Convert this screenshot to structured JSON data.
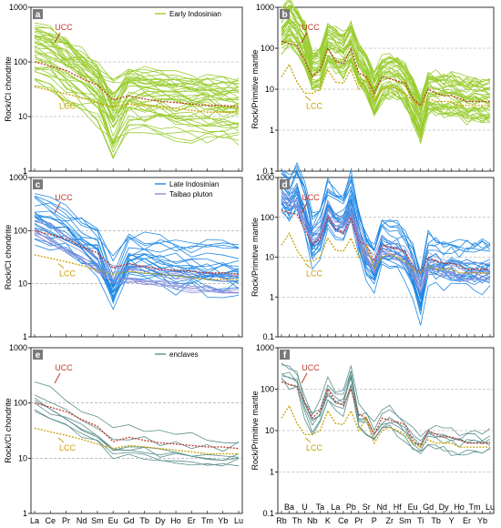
{
  "colors": {
    "early": "#9acd32",
    "late": "#1e88e5",
    "taibao": "#8a8fd8",
    "enclaves": "#5a8f8c",
    "ucc": "#c0392b",
    "lcc": "#c8a000",
    "grid": "#9a9a9a",
    "panel_label_bg": "#7a7a7a"
  },
  "chart_data": [
    {
      "id": "a",
      "type": "line",
      "panel_label": "a",
      "ylabel": "Rock/CI chondrite",
      "yscale": "log",
      "ylim": [
        1,
        1000
      ],
      "yticks": [
        "1",
        "10",
        "100",
        "1000"
      ],
      "categories": [
        "La",
        "Ce",
        "Pr",
        "Nd",
        "Sm",
        "Eu",
        "Gd",
        "Tb",
        "Dy",
        "Ho",
        "Er",
        "Tm",
        "Yb",
        "Lu"
      ],
      "show_xlabels": false,
      "legend": [
        {
          "label": "Early Indosinian",
          "color": "early"
        }
      ],
      "annotations": [
        {
          "text": "UCC",
          "color": "ucc"
        },
        {
          "text": "LCC",
          "color": "lcc"
        }
      ],
      "groups": [
        {
          "name": "Early Indosinian",
          "color": "early",
          "count": 40,
          "seed": 11,
          "base": [
            150,
            110,
            70,
            45,
            28,
            15,
            22,
            20,
            18,
            16,
            15,
            14,
            13,
            13
          ],
          "spread": 0.55,
          "eu_var": 0.6
        },
        {
          "name": "UCC",
          "color": "ucc",
          "count": 1,
          "seed": 2,
          "dashed": true,
          "base": [
            100,
            84,
            70,
            50,
            38,
            20,
            24,
            21,
            19,
            18,
            17,
            16,
            16,
            15
          ],
          "spread": 0
        },
        {
          "name": "LCC",
          "color": "lcc",
          "count": 1,
          "seed": 3,
          "dashed": true,
          "base": [
            35,
            30,
            26,
            22,
            18,
            15,
            17,
            16,
            15,
            14,
            13,
            12,
            12,
            12
          ],
          "spread": 0
        }
      ]
    },
    {
      "id": "b",
      "type": "line",
      "panel_label": "b",
      "ylabel": "Rock/Primitive mantle",
      "yscale": "log",
      "ylim": [
        0.1,
        1000
      ],
      "yticks": [
        "0.1",
        "1",
        "10",
        "100",
        "1000"
      ],
      "categories": [
        "Rb",
        "Ba",
        "Th",
        "U",
        "Nb",
        "Ta",
        "K",
        "La",
        "Ce",
        "Pb",
        "Pr",
        "Sr",
        "P",
        "Nd",
        "Zr",
        "Hf",
        "Sm",
        "Eu",
        "Ti",
        "Gd",
        "Tb",
        "Dy",
        "Y",
        "Ho",
        "Er",
        "Tm",
        "Yb",
        "Lu"
      ],
      "show_xlabels": false,
      "annotations": [
        {
          "text": "UCC",
          "color": "ucc"
        },
        {
          "text": "LCC",
          "color": "lcc"
        }
      ],
      "groups": [
        {
          "name": "Early Indosinian",
          "color": "early",
          "count": 40,
          "seed": 21,
          "base": [
            300,
            500,
            300,
            150,
            30,
            35,
            150,
            100,
            80,
            150,
            45,
            25,
            8,
            20,
            25,
            22,
            14,
            6,
            2,
            10,
            9,
            8,
            8,
            7,
            6,
            6,
            6,
            6
          ],
          "spread": 0.55
        },
        {
          "name": "UCC",
          "color": "ucc",
          "count": 1,
          "seed": 4,
          "dashed": true,
          "base": [
            150,
            130,
            120,
            50,
            20,
            30,
            100,
            50,
            40,
            100,
            25,
            20,
            8,
            20,
            18,
            16,
            14,
            6,
            4,
            10,
            8,
            7,
            7,
            6,
            5,
            5,
            5,
            5
          ],
          "spread": 0
        },
        {
          "name": "LCC",
          "color": "lcc",
          "count": 1,
          "seed": 5,
          "dashed": true,
          "base": [
            20,
            40,
            15,
            8,
            8,
            10,
            30,
            15,
            14,
            30,
            10,
            20,
            5,
            10,
            12,
            10,
            8,
            5,
            4,
            6,
            5,
            5,
            5,
            4,
            4,
            4,
            4,
            4
          ],
          "spread": 0
        }
      ]
    },
    {
      "id": "c",
      "type": "line",
      "panel_label": "c",
      "ylabel": "Rock/CI chondrite",
      "yscale": "log",
      "ylim": [
        1,
        1000
      ],
      "yticks": [
        "1",
        "10",
        "100",
        "1000"
      ],
      "categories": [
        "La",
        "Ce",
        "Pr",
        "Nd",
        "Sm",
        "Eu",
        "Gd",
        "Tb",
        "Dy",
        "Ho",
        "Er",
        "Tm",
        "Yb",
        "Lu"
      ],
      "show_xlabels": false,
      "legend": [
        {
          "label": "Late Indosinian",
          "color": "late"
        },
        {
          "label": "Taibao pluton",
          "color": "taibao"
        }
      ],
      "annotations": [
        {
          "text": "UCC",
          "color": "ucc"
        },
        {
          "text": "LCC",
          "color": "lcc"
        }
      ],
      "groups": [
        {
          "name": "Late Indosinian",
          "color": "late",
          "count": 22,
          "seed": 31,
          "base": [
            170,
            130,
            90,
            60,
            38,
            12,
            28,
            25,
            22,
            20,
            19,
            18,
            17,
            17
          ],
          "spread": 0.55,
          "eu_var": 0.5
        },
        {
          "name": "Taibao pluton",
          "color": "taibao",
          "count": 8,
          "seed": 37,
          "base": [
            120,
            90,
            60,
            40,
            24,
            16,
            16,
            15,
            13,
            12,
            11,
            11,
            10,
            10
          ],
          "spread": 0.2
        },
        {
          "name": "UCC",
          "color": "ucc",
          "count": 1,
          "seed": 6,
          "dashed": true,
          "base": [
            100,
            84,
            70,
            50,
            38,
            20,
            24,
            21,
            19,
            18,
            17,
            16,
            16,
            15
          ],
          "spread": 0
        },
        {
          "name": "LCC",
          "color": "lcc",
          "count": 1,
          "seed": 7,
          "dashed": true,
          "base": [
            35,
            30,
            26,
            22,
            18,
            15,
            17,
            16,
            15,
            14,
            13,
            12,
            12,
            12
          ],
          "spread": 0
        }
      ]
    },
    {
      "id": "d",
      "type": "line",
      "panel_label": "d",
      "ylabel": "Rock/Primitive mantle",
      "yscale": "log",
      "ylim": [
        0.1,
        1000
      ],
      "yticks": [
        "0.1",
        "1",
        "10",
        "100",
        "1000"
      ],
      "categories": [
        "Rb",
        "Ba",
        "Th",
        "U",
        "Nb",
        "Ta",
        "K",
        "La",
        "Ce",
        "Pb",
        "Pr",
        "Sr",
        "P",
        "Nd",
        "Zr",
        "Hf",
        "Sm",
        "Eu",
        "Ti",
        "Gd",
        "Tb",
        "Dy",
        "Y",
        "Ho",
        "Er",
        "Tm",
        "Yb",
        "Lu"
      ],
      "show_xlabels": false,
      "annotations": [
        {
          "text": "UCC",
          "color": "ucc"
        },
        {
          "text": "LCC",
          "color": "lcc"
        }
      ],
      "groups": [
        {
          "name": "Late Indosinian",
          "color": "late",
          "count": 22,
          "seed": 41,
          "base": [
            400,
            250,
            500,
            150,
            25,
            40,
            200,
            110,
            90,
            300,
            40,
            10,
            5,
            20,
            20,
            18,
            12,
            4,
            1,
            9,
            8,
            7,
            7,
            6,
            6,
            6,
            6,
            6
          ],
          "spread": 0.6
        },
        {
          "name": "Taibao pluton",
          "color": "taibao",
          "count": 8,
          "seed": 47,
          "base": [
            350,
            300,
            250,
            80,
            30,
            35,
            150,
            70,
            60,
            120,
            30,
            12,
            6,
            18,
            15,
            14,
            10,
            5,
            2,
            7,
            6,
            5,
            5,
            4,
            4,
            4,
            4,
            4
          ],
          "spread": 0.25
        },
        {
          "name": "UCC",
          "color": "ucc",
          "count": 1,
          "seed": 8,
          "dashed": true,
          "base": [
            150,
            130,
            120,
            50,
            20,
            30,
            100,
            50,
            40,
            100,
            25,
            20,
            8,
            20,
            18,
            16,
            14,
            6,
            4,
            10,
            8,
            7,
            7,
            6,
            5,
            5,
            5,
            5
          ],
          "spread": 0
        },
        {
          "name": "LCC",
          "color": "lcc",
          "count": 1,
          "seed": 9,
          "dashed": true,
          "base": [
            20,
            40,
            15,
            8,
            8,
            10,
            30,
            15,
            14,
            30,
            10,
            20,
            5,
            10,
            12,
            10,
            8,
            5,
            4,
            6,
            5,
            5,
            5,
            4,
            4,
            4,
            4,
            4
          ],
          "spread": 0
        }
      ]
    },
    {
      "id": "e",
      "type": "line",
      "panel_label": "e",
      "ylabel": "Rock/CI chondrite",
      "yscale": "log",
      "ylim": [
        1,
        1000
      ],
      "yticks": [
        "1",
        "10",
        "100",
        "1000"
      ],
      "categories": [
        "La",
        "Ce",
        "Pr",
        "Nd",
        "Sm",
        "Eu",
        "Gd",
        "Tb",
        "Dy",
        "Ho",
        "Er",
        "Tm",
        "Yb",
        "Lu"
      ],
      "show_xlabels": true,
      "legend": [
        {
          "label": "enclaves",
          "color": "enclaves"
        }
      ],
      "annotations": [
        {
          "text": "UCC",
          "color": "ucc"
        },
        {
          "text": "LCC",
          "color": "lcc"
        }
      ],
      "groups": [
        {
          "name": "enclaves",
          "color": "enclaves",
          "count": 7,
          "seed": 51,
          "base": [
            140,
            105,
            75,
            50,
            32,
            22,
            22,
            19,
            17,
            16,
            15,
            15,
            14,
            14
          ],
          "spread": 0.35
        },
        {
          "name": "UCC",
          "color": "ucc",
          "count": 1,
          "seed": 10,
          "dashed": true,
          "base": [
            100,
            84,
            70,
            50,
            38,
            20,
            24,
            21,
            19,
            18,
            17,
            16,
            16,
            15
          ],
          "spread": 0
        },
        {
          "name": "LCC",
          "color": "lcc",
          "count": 1,
          "seed": 12,
          "dashed": true,
          "base": [
            35,
            30,
            26,
            22,
            18,
            15,
            17,
            16,
            15,
            14,
            13,
            12,
            12,
            12
          ],
          "spread": 0
        }
      ]
    },
    {
      "id": "f",
      "type": "line",
      "panel_label": "f",
      "ylabel": "Rock/Primitive mantle",
      "yscale": "log",
      "ylim": [
        0.1,
        1000
      ],
      "yticks": [
        "0.1",
        "1",
        "10",
        "100",
        "1000"
      ],
      "categories": [
        "Rb",
        "Ba",
        "Th",
        "U",
        "Nb",
        "Ta",
        "K",
        "La",
        "Ce",
        "Pb",
        "Pr",
        "Sr",
        "P",
        "Nd",
        "Zr",
        "Hf",
        "Sm",
        "Eu",
        "Ti",
        "Gd",
        "Tb",
        "Dy",
        "Y",
        "Ho",
        "Er",
        "Tm",
        "Yb",
        "Lu"
      ],
      "show_xlabels": true,
      "annotations": [
        {
          "text": "UCC",
          "color": "ucc"
        },
        {
          "text": "LCC",
          "color": "lcc"
        }
      ],
      "groups": [
        {
          "name": "enclaves",
          "color": "enclaves",
          "count": 7,
          "seed": 61,
          "base": [
            250,
            200,
            150,
            40,
            15,
            25,
            90,
            50,
            45,
            200,
            20,
            15,
            8,
            15,
            18,
            15,
            10,
            6,
            4,
            7,
            6,
            6,
            5,
            5,
            5,
            5,
            5,
            5
          ],
          "spread": 0.45
        },
        {
          "name": "UCC",
          "color": "ucc",
          "count": 1,
          "seed": 13,
          "dashed": true,
          "base": [
            150,
            130,
            120,
            50,
            20,
            30,
            100,
            50,
            40,
            100,
            25,
            20,
            8,
            20,
            18,
            16,
            14,
            6,
            4,
            10,
            8,
            7,
            7,
            6,
            5,
            5,
            5,
            5
          ],
          "spread": 0
        },
        {
          "name": "LCC",
          "color": "lcc",
          "count": 1,
          "seed": 14,
          "dashed": true,
          "base": [
            20,
            40,
            15,
            8,
            8,
            10,
            30,
            15,
            14,
            30,
            10,
            20,
            5,
            10,
            12,
            10,
            8,
            5,
            4,
            6,
            5,
            5,
            5,
            4,
            4,
            4,
            4,
            4
          ],
          "spread": 0
        }
      ]
    }
  ]
}
